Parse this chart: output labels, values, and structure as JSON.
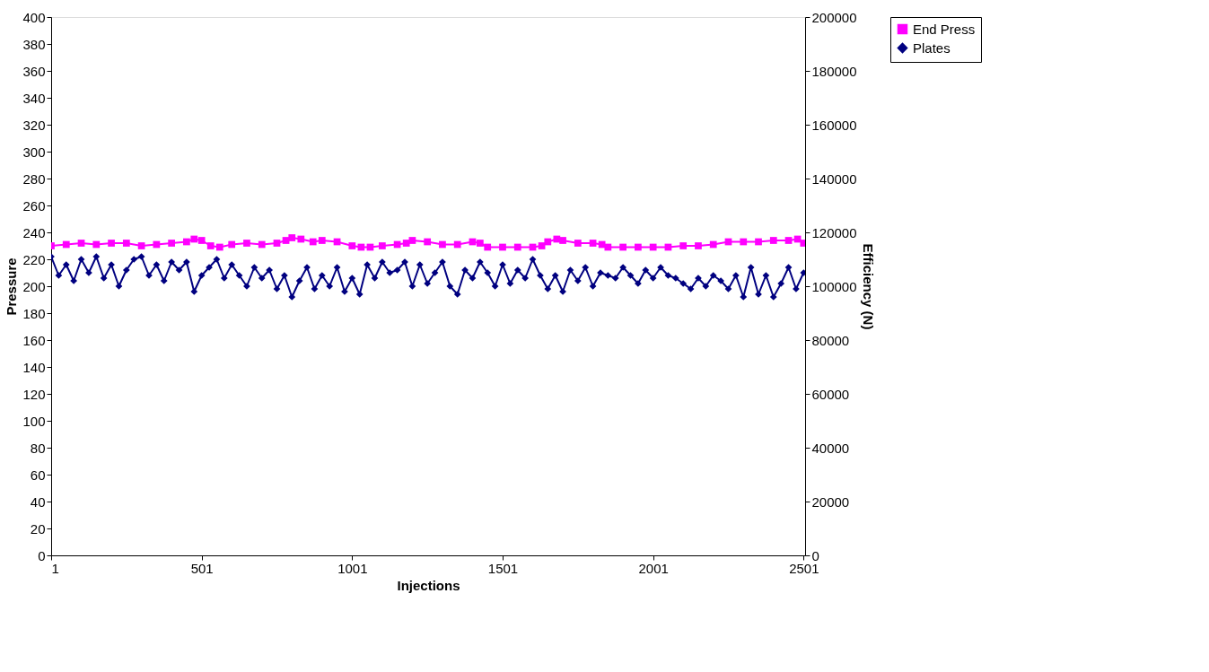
{
  "chart_data": {
    "type": "line",
    "xlabel": "Injections",
    "ylabel": "Pressure",
    "y2label": "Efficiency (N)",
    "xlim": [
      1,
      2506
    ],
    "xticks": [
      1,
      501,
      1001,
      1501,
      2001,
      2501
    ],
    "ylim": [
      0,
      400
    ],
    "yticks": [
      0,
      20,
      40,
      60,
      80,
      100,
      120,
      140,
      160,
      180,
      200,
      220,
      240,
      260,
      280,
      300,
      320,
      340,
      360,
      380,
      400
    ],
    "y2lim": [
      0,
      200000
    ],
    "y2ticks": [
      0,
      20000,
      40000,
      60000,
      80000,
      100000,
      120000,
      140000,
      160000,
      180000,
      200000
    ],
    "grid": false,
    "legend": "right",
    "line_style": "solid",
    "series": [
      {
        "name": "End Press",
        "color": "#ff00ff",
        "marker": "square",
        "x": [
          1,
          51,
          101,
          151,
          201,
          251,
          301,
          351,
          401,
          451,
          476,
          501,
          531,
          561,
          601,
          651,
          701,
          751,
          781,
          801,
          831,
          871,
          901,
          951,
          1001,
          1031,
          1061,
          1101,
          1151,
          1181,
          1201,
          1251,
          1301,
          1351,
          1401,
          1426,
          1451,
          1501,
          1551,
          1601,
          1631,
          1651,
          1681,
          1701,
          1751,
          1801,
          1831,
          1851,
          1901,
          1951,
          2001,
          2051,
          2101,
          2151,
          2201,
          2251,
          2301,
          2351,
          2401,
          2451,
          2481,
          2501
        ],
        "values": [
          230,
          231,
          232,
          231,
          232,
          232,
          230,
          231,
          232,
          233,
          235,
          234,
          230,
          229,
          231,
          232,
          231,
          232,
          234,
          236,
          235,
          233,
          234,
          233,
          230,
          229,
          229,
          230,
          231,
          232,
          234,
          233,
          231,
          231,
          233,
          232,
          229,
          229,
          229,
          229,
          230,
          233,
          235,
          234,
          232,
          232,
          231,
          229,
          229,
          229,
          229,
          229,
          230,
          230,
          231,
          233,
          233,
          233,
          234,
          234,
          235,
          232
        ]
      },
      {
        "name": "Plates",
        "color": "#000080",
        "marker": "diamond",
        "axis": "y2",
        "x": [
          1,
          26,
          51,
          76,
          101,
          126,
          151,
          176,
          201,
          226,
          251,
          276,
          301,
          326,
          351,
          376,
          401,
          426,
          451,
          476,
          501,
          526,
          551,
          576,
          601,
          626,
          651,
          676,
          701,
          726,
          751,
          776,
          801,
          826,
          851,
          876,
          901,
          926,
          951,
          976,
          1001,
          1026,
          1051,
          1076,
          1101,
          1126,
          1151,
          1176,
          1201,
          1226,
          1251,
          1276,
          1301,
          1326,
          1351,
          1376,
          1401,
          1426,
          1451,
          1476,
          1501,
          1526,
          1551,
          1576,
          1601,
          1626,
          1651,
          1676,
          1701,
          1726,
          1751,
          1776,
          1801,
          1826,
          1851,
          1876,
          1901,
          1926,
          1951,
          1976,
          2001,
          2026,
          2051,
          2076,
          2101,
          2126,
          2151,
          2176,
          2201,
          2226,
          2251,
          2276,
          2301,
          2326,
          2351,
          2376,
          2401,
          2426,
          2451,
          2476,
          2501
        ],
        "values": [
          111000,
          104000,
          108000,
          102000,
          110000,
          105000,
          111000,
          103000,
          108000,
          100000,
          106000,
          110000,
          111000,
          104000,
          108000,
          102000,
          109000,
          106000,
          109000,
          98000,
          104000,
          107000,
          110000,
          103000,
          108000,
          104000,
          100000,
          107000,
          103000,
          106000,
          99000,
          104000,
          96000,
          102000,
          107000,
          99000,
          104000,
          100000,
          107000,
          98000,
          103000,
          97000,
          108000,
          103000,
          109000,
          105000,
          106000,
          109000,
          100000,
          108000,
          101000,
          105000,
          109000,
          100000,
          97000,
          106000,
          103000,
          109000,
          105000,
          100000,
          108000,
          101000,
          106000,
          103000,
          110000,
          104000,
          99000,
          104000,
          98000,
          106000,
          102000,
          107000,
          100000,
          105000,
          104000,
          103000,
          107000,
          104000,
          101000,
          106000,
          103000,
          107000,
          104000,
          103000,
          101000,
          99000,
          103000,
          100000,
          104000,
          102000,
          99000,
          104000,
          96000,
          107000,
          97000,
          104000,
          96000,
          101000,
          107000,
          99000,
          105000
        ]
      }
    ]
  }
}
